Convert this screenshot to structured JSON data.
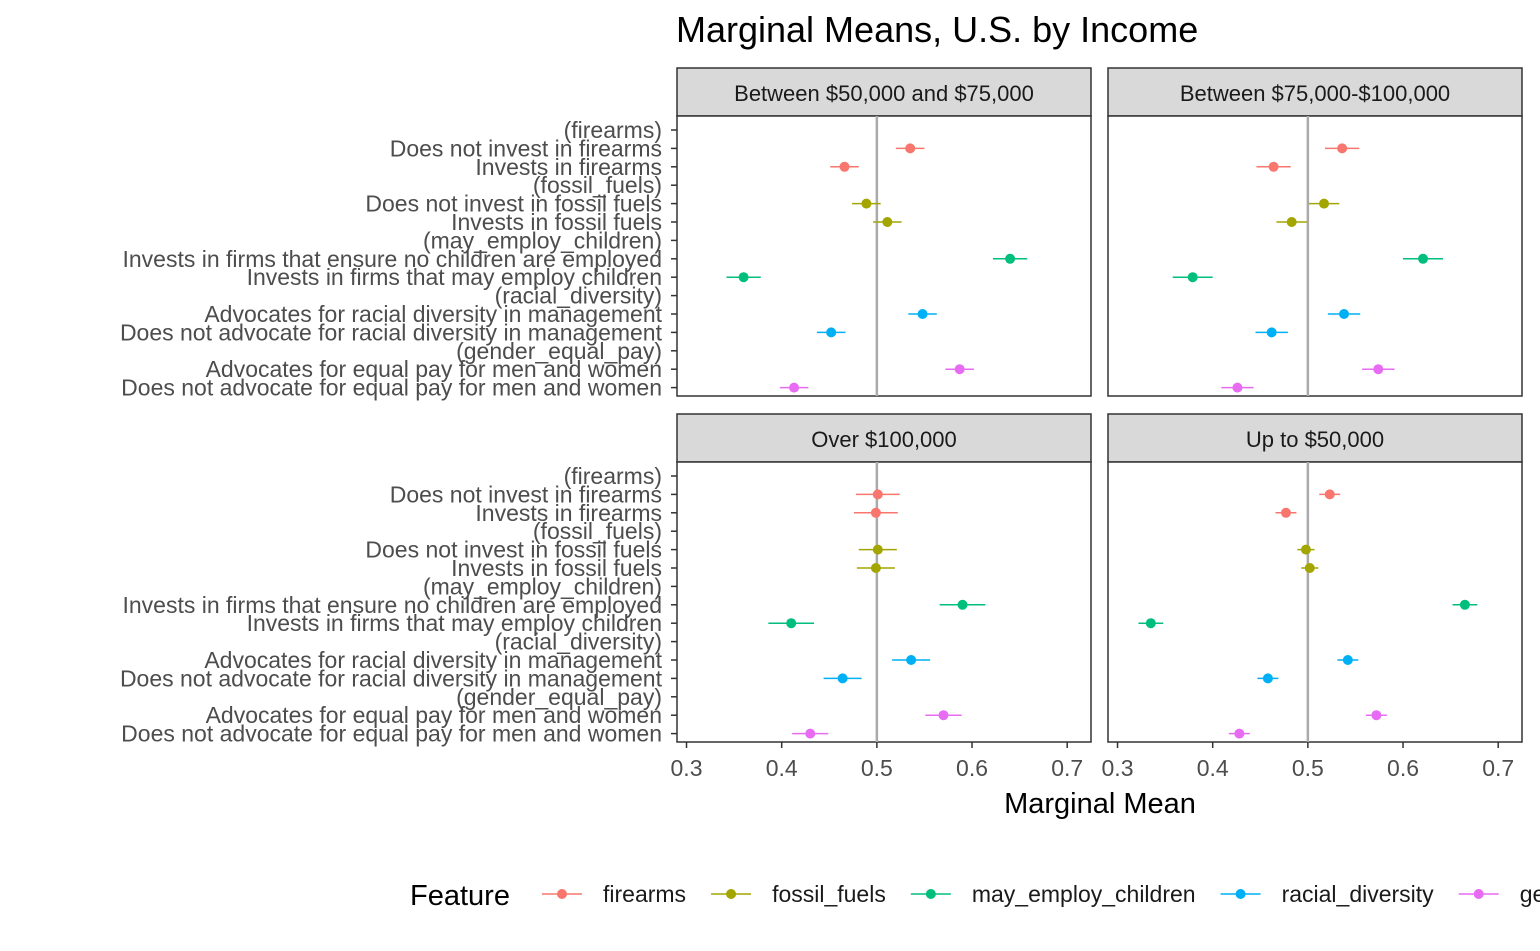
{
  "chart_data": {
    "type": "scatter",
    "subtype": "dot-and-whisker",
    "title": "Marginal Means, U.S. by Income",
    "xlabel": "Marginal Mean",
    "ylabel": "",
    "xlim": [
      0.29,
      0.725
    ],
    "x_ticks": [
      0.3,
      0.4,
      0.5,
      0.6,
      0.7
    ],
    "x_tick_labels": [
      "0.3",
      "0.4",
      "0.5",
      "0.6",
      "0.7"
    ],
    "reference_line": 0.5,
    "grid": false,
    "legend": {
      "title": "Feature",
      "position": "bottom",
      "entries": [
        "firearms",
        "fossil_fuels",
        "may_employ_children",
        "racial_diversity",
        "gender_equal_pay"
      ]
    },
    "colors": {
      "firearms": "#F8766D",
      "fossil_fuels": "#A3A500",
      "may_employ_children": "#00BF7D",
      "racial_diversity": "#00B0F6",
      "gender_equal_pay": "#E76BF3",
      "reference_line": "#aaaaaa",
      "strip": "#d9d9d9"
    },
    "y_labels": [
      "(firearms)",
      "Does not invest in firearms",
      "Invests in firearms",
      "(fossil_fuels)",
      "Does not invest in fossil fuels",
      "Invests in fossil fuels",
      "(may_employ_children)",
      "Invests in firms that ensure no children are employed",
      "Invests in firms that may employ children",
      "(racial_diversity)",
      "Advocates for racial diversity in management",
      "Does not advocate for racial diversity in management",
      "(gender_equal_pay)",
      "Advocates for equal pay for men and women",
      "Does not advocate for equal pay for men and women"
    ],
    "row_feature": [
      null,
      "firearms",
      "firearms",
      null,
      "fossil_fuels",
      "fossil_fuels",
      null,
      "may_employ_children",
      "may_employ_children",
      null,
      "racial_diversity",
      "racial_diversity",
      null,
      "gender_equal_pay",
      "gender_equal_pay"
    ],
    "panels": [
      {
        "name": "Between $50,000 and $75,000",
        "estimates": [
          null,
          0.535,
          0.466,
          null,
          0.489,
          0.511,
          null,
          0.64,
          0.36,
          null,
          0.548,
          0.452,
          null,
          0.587,
          0.413
        ],
        "lower": [
          null,
          0.52,
          0.451,
          null,
          0.474,
          0.496,
          null,
          0.622,
          0.342,
          null,
          0.533,
          0.437,
          null,
          0.572,
          0.398
        ],
        "upper": [
          null,
          0.55,
          0.481,
          null,
          0.504,
          0.526,
          null,
          0.658,
          0.378,
          null,
          0.563,
          0.467,
          null,
          0.602,
          0.428
        ]
      },
      {
        "name": "Between $75,000-$100,000",
        "estimates": [
          null,
          0.536,
          0.464,
          null,
          0.517,
          0.483,
          null,
          0.621,
          0.379,
          null,
          0.538,
          0.462,
          null,
          0.574,
          0.426
        ],
        "lower": [
          null,
          0.518,
          0.446,
          null,
          0.501,
          0.467,
          null,
          0.6,
          0.358,
          null,
          0.521,
          0.445,
          null,
          0.557,
          0.409
        ],
        "upper": [
          null,
          0.554,
          0.482,
          null,
          0.533,
          0.499,
          null,
          0.642,
          0.4,
          null,
          0.555,
          0.479,
          null,
          0.591,
          0.443
        ]
      },
      {
        "name": "Over $100,000",
        "estimates": [
          null,
          0.501,
          0.499,
          null,
          0.501,
          0.499,
          null,
          0.59,
          0.41,
          null,
          0.536,
          0.464,
          null,
          0.57,
          0.43
        ],
        "lower": [
          null,
          0.478,
          0.476,
          null,
          0.481,
          0.479,
          null,
          0.566,
          0.386,
          null,
          0.516,
          0.444,
          null,
          0.551,
          0.411
        ],
        "upper": [
          null,
          0.524,
          0.522,
          null,
          0.521,
          0.519,
          null,
          0.614,
          0.434,
          null,
          0.556,
          0.484,
          null,
          0.589,
          0.449
        ]
      },
      {
        "name": "Up to $50,000",
        "estimates": [
          null,
          0.523,
          0.477,
          null,
          0.498,
          0.502,
          null,
          0.665,
          0.335,
          null,
          0.542,
          0.458,
          null,
          0.572,
          0.428
        ],
        "lower": [
          null,
          0.512,
          0.466,
          null,
          0.489,
          0.493,
          null,
          0.652,
          0.322,
          null,
          0.531,
          0.447,
          null,
          0.561,
          0.417
        ],
        "upper": [
          null,
          0.534,
          0.488,
          null,
          0.507,
          0.511,
          null,
          0.678,
          0.348,
          null,
          0.553,
          0.469,
          null,
          0.583,
          0.439
        ]
      }
    ]
  }
}
